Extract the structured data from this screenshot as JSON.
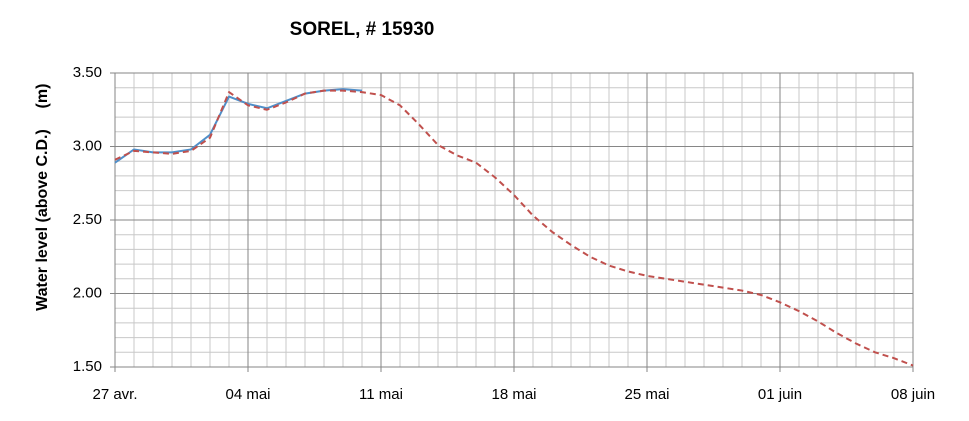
{
  "chart_data": {
    "type": "line",
    "title": "SOREL, # 15930",
    "y_label": "Water level (above C.D.)",
    "y_unit_label": "(m)",
    "x": [
      0,
      1,
      2,
      3,
      4,
      5,
      6,
      7,
      8,
      9,
      10,
      11,
      12,
      13,
      14,
      15,
      16,
      17,
      18,
      19,
      20,
      21,
      22,
      23,
      24,
      25,
      26,
      27,
      28,
      29,
      30,
      31,
      32,
      33,
      34,
      35,
      36,
      37,
      38,
      39,
      40,
      41,
      42
    ],
    "xlim": [
      0,
      42
    ],
    "xticks": [
      {
        "value": 0,
        "label": "27 avr."
      },
      {
        "value": 7,
        "label": "04 mai"
      },
      {
        "value": 14,
        "label": "11 mai"
      },
      {
        "value": 21,
        "label": "18 mai"
      },
      {
        "value": 28,
        "label": "25 mai"
      },
      {
        "value": 35,
        "label": "01 juin"
      },
      {
        "value": 42,
        "label": "08 juin"
      }
    ],
    "ylim": [
      1.5,
      3.5
    ],
    "yticks": [
      {
        "value": 1.5,
        "label": "1.50"
      },
      {
        "value": 2,
        "label": "2.00"
      },
      {
        "value": 2.5,
        "label": "2.50"
      },
      {
        "value": 3,
        "label": "3.00"
      },
      {
        "value": 3.5,
        "label": "3.50"
      }
    ],
    "grid": true,
    "series": [
      {
        "color": "#4f8fc9",
        "dash": false,
        "values": [
          2.89,
          2.98,
          2.96,
          2.96,
          2.98,
          3.08,
          3.34,
          3.29,
          3.26,
          3.31,
          3.36,
          3.38,
          3.39,
          3.38,
          null,
          null,
          null,
          null,
          null,
          null,
          null,
          null,
          null,
          null,
          null,
          null,
          null,
          null,
          null,
          null,
          null,
          null,
          null,
          null,
          null,
          null,
          null,
          null,
          null,
          null,
          null,
          null,
          null
        ]
      },
      {
        "color": "#c0504d",
        "dash": true,
        "values": [
          2.91,
          2.97,
          2.96,
          2.95,
          2.97,
          3.06,
          3.37,
          3.28,
          3.25,
          3.3,
          3.36,
          3.38,
          3.38,
          3.37,
          3.35,
          3.28,
          3.15,
          3.01,
          2.94,
          2.89,
          2.79,
          2.67,
          2.53,
          2.42,
          2.33,
          2.25,
          2.19,
          2.15,
          2.12,
          2.1,
          2.08,
          2.06,
          2.04,
          2.02,
          1.99,
          1.94,
          1.88,
          1.81,
          1.73,
          1.66,
          1.6,
          1.56,
          1.51
        ]
      }
    ]
  }
}
